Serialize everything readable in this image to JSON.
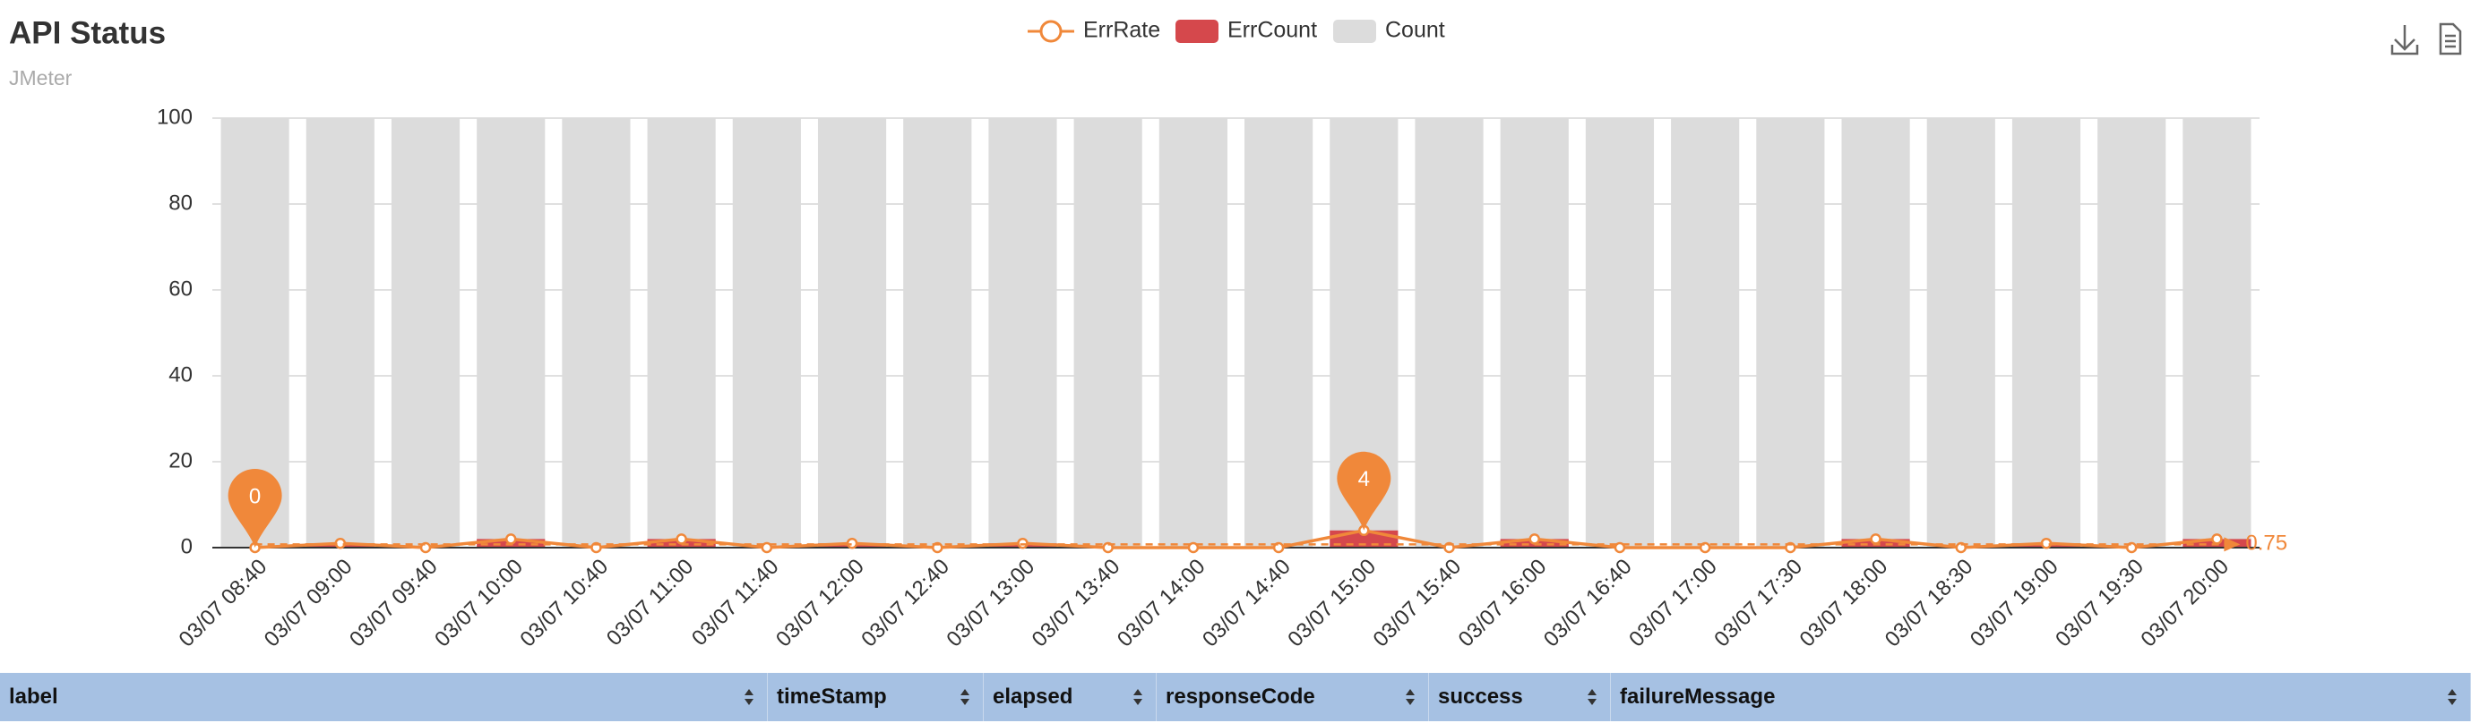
{
  "chart_data": {
    "type": "bar-line",
    "title": "API Status",
    "subtitle": "JMeter",
    "categories": [
      "03/07 08:40",
      "03/07 09:00",
      "03/07 09:40",
      "03/07 10:00",
      "03/07 10:40",
      "03/07 11:00",
      "03/07 11:40",
      "03/07 12:00",
      "03/07 12:40",
      "03/07 13:00",
      "03/07 13:40",
      "03/07 14:00",
      "03/07 14:40",
      "03/07 15:00",
      "03/07 15:40",
      "03/07 16:00",
      "03/07 16:40",
      "03/07 17:00",
      "03/07 17:30",
      "03/07 18:00",
      "03/07 18:30",
      "03/07 19:00",
      "03/07 19:30",
      "03/07 20:00"
    ],
    "series": [
      {
        "name": "ErrRate",
        "type": "line",
        "color": "#f0883a",
        "values": [
          0,
          1,
          0,
          2,
          0,
          2,
          0,
          1,
          0,
          1,
          0,
          0,
          0,
          4,
          0,
          2,
          0,
          0,
          0,
          2,
          0,
          1,
          0,
          2
        ]
      },
      {
        "name": "ErrCount",
        "type": "bar",
        "color": "#d5484c",
        "values": [
          0,
          1,
          0,
          2,
          0,
          2,
          0,
          1,
          0,
          1,
          0,
          0,
          0,
          4,
          0,
          2,
          0,
          0,
          0,
          2,
          0,
          1,
          0,
          2
        ]
      },
      {
        "name": "Count",
        "type": "bar",
        "color": "#dcdcdc",
        "values": [
          100,
          100,
          100,
          100,
          100,
          100,
          100,
          100,
          100,
          100,
          100,
          100,
          100,
          100,
          100,
          100,
          100,
          100,
          100,
          100,
          100,
          100,
          100,
          100
        ]
      }
    ],
    "mark_points": [
      {
        "category": "03/07 08:40",
        "value": 0
      },
      {
        "category": "03/07 15:00",
        "value": 4
      }
    ],
    "average": 0.75,
    "ylim": [
      0,
      100
    ],
    "yticks": [
      0,
      20,
      40,
      60,
      80,
      100
    ],
    "grid": true,
    "legend": "top"
  },
  "table": {
    "columns": [
      "label",
      "timeStamp",
      "elapsed",
      "responseCode",
      "success",
      "failureMessage"
    ]
  }
}
